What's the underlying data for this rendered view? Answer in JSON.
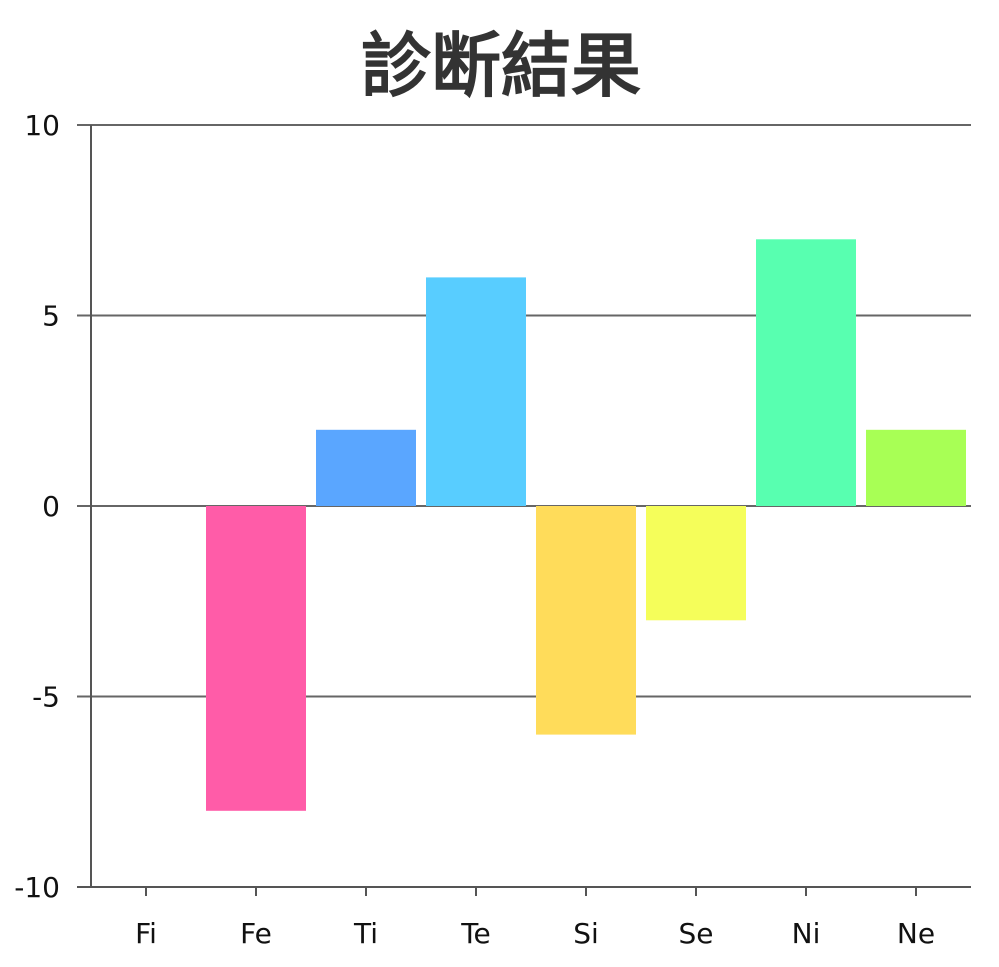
{
  "chart_data": {
    "type": "bar",
    "title": "診断結果",
    "xlabel": "",
    "ylabel": "",
    "categories": [
      "Fi",
      "Fe",
      "Ti",
      "Te",
      "Si",
      "Se",
      "Ni",
      "Ne"
    ],
    "values": [
      0,
      -8,
      2,
      6,
      -6,
      -3,
      7,
      2
    ],
    "colors": [
      "#ff5ca8",
      "#ff5ca8",
      "#5aa6ff",
      "#58cdff",
      "#ffdc5a",
      "#f5fe5a",
      "#58ffb0",
      "#a8ff55"
    ],
    "ylim": [
      -10,
      10
    ],
    "yticks": [
      10,
      5,
      0,
      -5,
      -10
    ],
    "ytick_labels": [
      "10",
      "5",
      "0",
      "-5",
      "-10"
    ],
    "grid": true,
    "legend": "none"
  }
}
